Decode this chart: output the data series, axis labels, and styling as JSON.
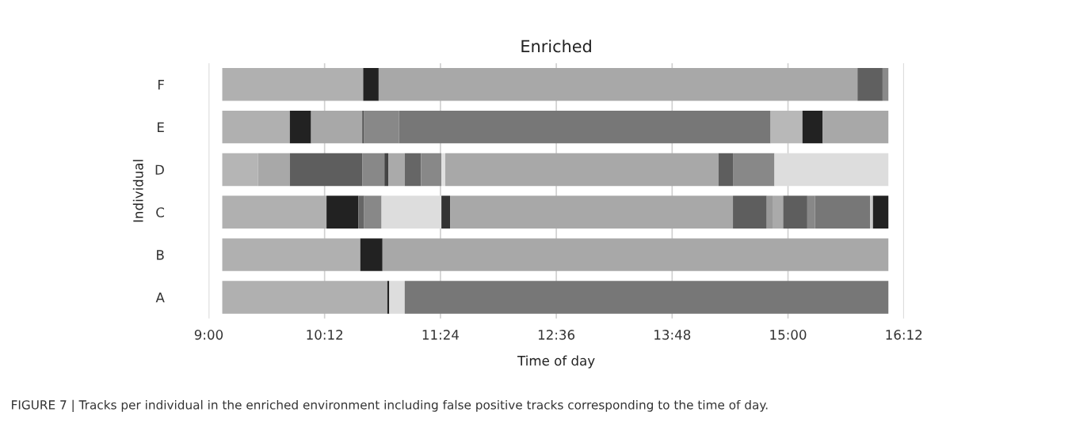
{
  "chart_data": {
    "type": "bar",
    "orientation": "horizontal",
    "title": "Enriched",
    "xlabel": "Time of day",
    "ylabel": "Individual",
    "categories": [
      "F",
      "E",
      "D",
      "C",
      "B",
      "A"
    ],
    "series": [
      {
        "base": [
          9.14,
          9.14,
          9.14,
          9.14,
          9.14,
          9.14
        ],
        "values": [
          1.46,
          0.7,
          0.37,
          1.08,
          1.43,
          1.71
        ],
        "colors": [
          "#b0b0b0",
          "#b0b0b0",
          "#b5b5b5",
          "#b0b0b0",
          "#b0b0b0",
          "#b0b0b0"
        ]
      },
      {
        "base": [
          10.6,
          9.84,
          9.51,
          10.22,
          10.57,
          10.85
        ],
        "values": [
          0.16,
          0.22,
          0.33,
          0.33,
          0.23,
          0.02
        ],
        "colors": [
          "#222222",
          "#222222",
          "#a8a8a8",
          "#222222",
          "#222222",
          "#222222"
        ]
      },
      {
        "base": [
          10.76,
          10.06,
          9.84,
          10.55,
          10.8,
          10.87
        ],
        "values": [
          4.96,
          0.53,
          0.75,
          0.06,
          5.24,
          0.16
        ],
        "colors": [
          "#a8a8a8",
          "#a8a8a8",
          "#5e5e5e",
          "#666666",
          "#a8a8a8",
          "#dddddd"
        ]
      },
      {
        "base": [
          15.72,
          10.59,
          10.59,
          10.61,
          null,
          11.03
        ],
        "values": [
          0.26,
          0.02,
          0.23,
          0.18,
          null,
          5.01
        ],
        "colors": [
          "#606060",
          "#555555",
          "#888888",
          "#888888",
          null,
          "#777777"
        ]
      },
      {
        "base": [
          15.98,
          10.61,
          10.82,
          10.79,
          null,
          null
        ],
        "values": [
          0.06,
          0.36,
          0.04,
          0.62,
          null,
          null
        ],
        "colors": [
          "#8a8a8a",
          "#888888",
          "#444444",
          "#dddddd",
          null,
          null
        ]
      },
      {
        "base": [
          null,
          10.97,
          10.86,
          11.41,
          null,
          null
        ],
        "values": [
          null,
          3.85,
          0.17,
          0.09,
          null,
          null
        ],
        "colors": [
          null,
          "#777777",
          "#aaaaaa",
          "#333333",
          null,
          null
        ]
      },
      {
        "base": [
          null,
          14.82,
          11.03,
          11.5,
          null,
          null
        ],
        "values": [
          null,
          0.33,
          0.17,
          2.93,
          null,
          null
        ],
        "colors": [
          null,
          "#b8b8b8",
          "#666666",
          "#a8a8a8",
          null,
          null
        ]
      },
      {
        "base": [
          null,
          15.15,
          11.2,
          14.43,
          null,
          null
        ],
        "values": [
          null,
          0.21,
          0.21,
          0.35,
          null,
          null
        ],
        "colors": [
          null,
          "#222222",
          "#888888",
          "#5e5e5e",
          null,
          null
        ]
      },
      {
        "base": [
          null,
          15.36,
          11.41,
          14.78,
          null,
          null
        ],
        "values": [
          null,
          0.68,
          0.04,
          0.06,
          null,
          null
        ],
        "colors": [
          null,
          "#a8a8a8",
          "#e0e0e0",
          "#999999",
          null,
          null
        ]
      },
      {
        "base": [
          null,
          null,
          11.45,
          14.84,
          null,
          null
        ],
        "values": [
          null,
          null,
          2.83,
          0.11,
          null,
          null
        ],
        "colors": [
          null,
          null,
          "#a8a8a8",
          "#aaaaaa",
          null,
          null
        ]
      },
      {
        "base": [
          null,
          null,
          14.28,
          14.95,
          null,
          null
        ],
        "values": [
          null,
          null,
          0.15,
          0.25,
          null,
          null
        ],
        "colors": [
          null,
          null,
          "#5e5e5e",
          "#5e5e5e",
          null,
          null
        ]
      },
      {
        "base": [
          null,
          null,
          14.43,
          15.2,
          null,
          null
        ],
        "values": [
          null,
          null,
          0.43,
          0.08,
          null,
          null
        ],
        "colors": [
          null,
          null,
          "#888888",
          "#888888",
          null,
          null
        ]
      },
      {
        "base": [
          null,
          null,
          14.86,
          15.28,
          null,
          null
        ],
        "values": [
          null,
          null,
          1.18,
          0.57,
          null,
          null
        ],
        "colors": [
          null,
          null,
          "#dddddd",
          "#777777",
          null,
          null
        ]
      },
      {
        "base": [
          null,
          null,
          null,
          15.85,
          null,
          null
        ],
        "values": [
          null,
          null,
          null,
          0.03,
          null,
          null
        ],
        "colors": [
          null,
          null,
          null,
          "#cccccc",
          null,
          null
        ]
      },
      {
        "base": [
          null,
          null,
          null,
          15.88,
          null,
          null
        ],
        "values": [
          null,
          null,
          null,
          0.16,
          null,
          null
        ],
        "colors": [
          null,
          null,
          null,
          "#222222",
          null,
          null
        ]
      }
    ],
    "xlim": [
      9,
      16.2
    ],
    "xticks": [
      {
        "value": 9,
        "label": "9:00"
      },
      {
        "value": 10.2,
        "label": "10:12"
      },
      {
        "value": 11.4,
        "label": "11:24"
      },
      {
        "value": 12.6,
        "label": "12:36"
      },
      {
        "value": 13.8,
        "label": "13:48"
      },
      {
        "value": 15.0,
        "label": "15:00"
      },
      {
        "value": 16.2,
        "label": "16:12"
      }
    ],
    "grid": "x",
    "annotations": [
      "FIGURE 7 | Tracks per individual in the enriched environment including false positive tracks corresponding to the time of day."
    ]
  }
}
